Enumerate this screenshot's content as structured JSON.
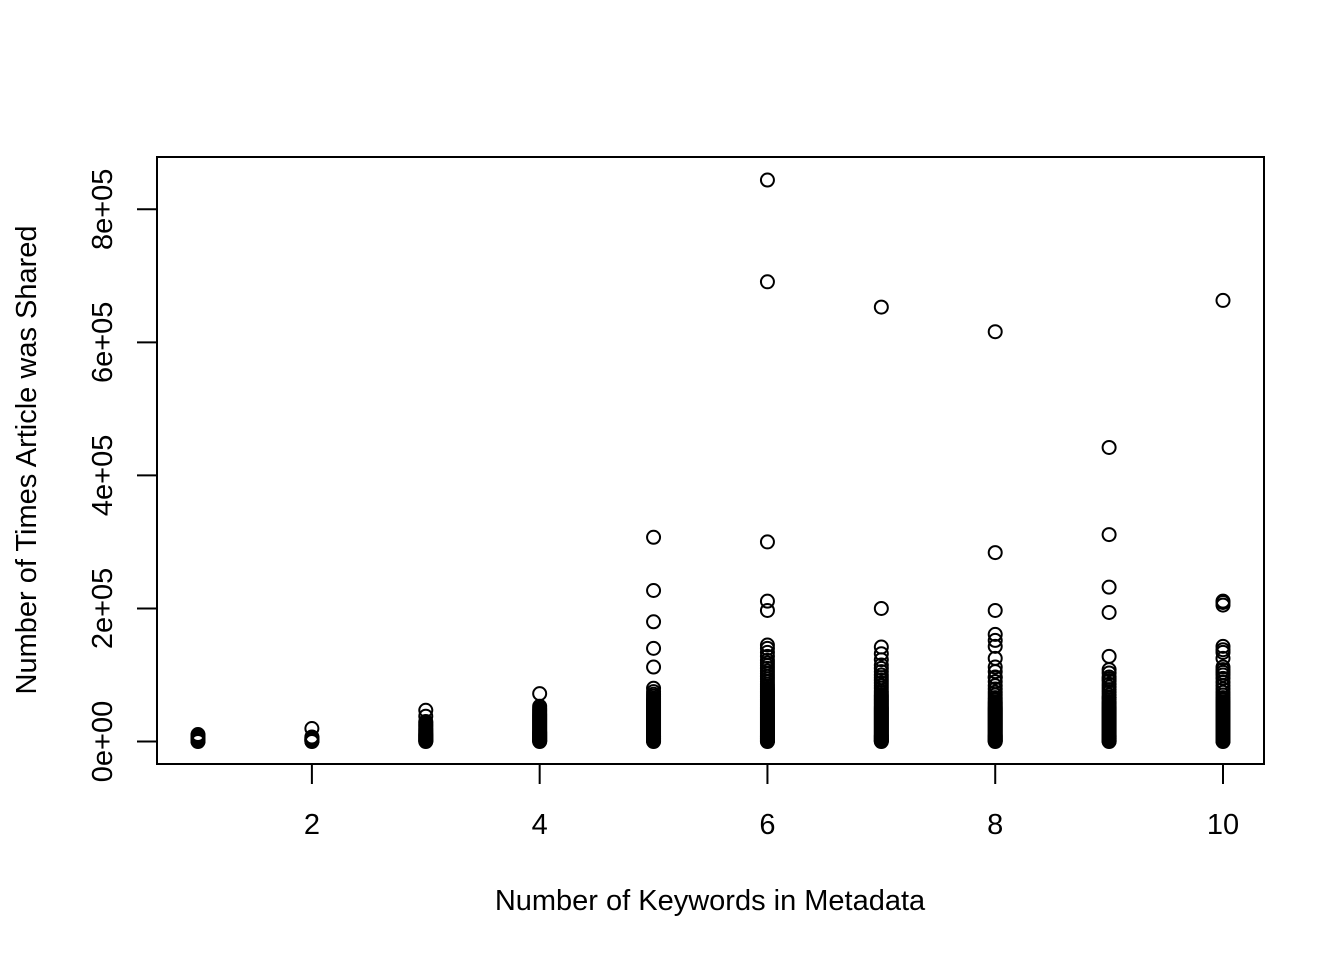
{
  "chart_data": {
    "type": "scatter",
    "title": "",
    "xlabel": "Number of Keywords in Metadata",
    "ylabel": "Number of Times Article was Shared",
    "xlim": [
      0.64,
      10.36
    ],
    "ylim": [
      -33792,
      878592
    ],
    "x_ticks": [
      {
        "value": 2,
        "label": "2"
      },
      {
        "value": 4,
        "label": "4"
      },
      {
        "value": 6,
        "label": "6"
      },
      {
        "value": 8,
        "label": "8"
      },
      {
        "value": 10,
        "label": "10"
      }
    ],
    "y_ticks": [
      {
        "value": 0,
        "label": "0e+00"
      },
      {
        "value": 200000,
        "label": "2e+05"
      },
      {
        "value": 400000,
        "label": "4e+05"
      },
      {
        "value": 600000,
        "label": "6e+05"
      },
      {
        "value": 800000,
        "label": "8e+05"
      }
    ],
    "grid": false,
    "legend": "none",
    "marker": "open-circle",
    "colors": {
      "points": "#000000",
      "axes": "#000000",
      "background": "#ffffff"
    },
    "series": [
      {
        "x": [
          1,
          1,
          1,
          1,
          1,
          1,
          1,
          1,
          1,
          1,
          1,
          1
        ],
        "y": [
          0,
          500,
          1000,
          1500,
          2000,
          3000,
          4000,
          5000,
          6000,
          7500,
          9000,
          10500
        ]
      },
      {
        "x": [
          2,
          2,
          2,
          2,
          2,
          2,
          2,
          2,
          2,
          2,
          2,
          2,
          2
        ],
        "y": [
          0,
          500,
          1000,
          1500,
          2000,
          2500,
          3000,
          3500,
          4000,
          5000,
          6000,
          6800,
          19500
        ]
      },
      {
        "x": [
          3,
          3,
          3,
          3,
          3,
          3,
          3,
          3,
          3,
          3,
          3,
          3,
          3,
          3,
          3,
          3,
          3,
          3,
          3,
          3,
          3,
          3,
          3,
          3,
          3,
          3
        ],
        "y": [
          0,
          600,
          1200,
          2000,
          3000,
          4000,
          5000,
          6000,
          7000,
          8000,
          9000,
          10000,
          11000,
          12000,
          13500,
          15000,
          16500,
          18000,
          20000,
          22000,
          24000,
          26000,
          28000,
          30000,
          38000,
          47000
        ]
      },
      {
        "x": [
          4,
          4,
          4,
          4,
          4,
          4,
          4,
          4,
          4,
          4,
          4,
          4,
          4,
          4,
          4,
          4,
          4,
          4,
          4,
          4,
          4,
          4,
          4,
          4,
          4,
          4,
          4,
          4,
          4,
          4,
          4,
          4,
          4,
          4,
          4,
          4,
          4,
          4,
          4,
          4,
          4
        ],
        "y": [
          0,
          600,
          1200,
          2000,
          3000,
          4000,
          5000,
          6000,
          7000,
          8000,
          9000,
          10000,
          11000,
          12000,
          13000,
          14000,
          15000,
          16500,
          18000,
          19500,
          21000,
          22500,
          24000,
          25500,
          27000,
          28500,
          30000,
          31500,
          33000,
          34500,
          36000,
          37500,
          39000,
          40500,
          42000,
          44000,
          46000,
          48000,
          50000,
          53000,
          72000
        ]
      },
      {
        "x": [
          5,
          5,
          5,
          5,
          5,
          5,
          5,
          5,
          5,
          5,
          5,
          5,
          5,
          5,
          5,
          5,
          5,
          5,
          5,
          5,
          5,
          5,
          5,
          5,
          5,
          5,
          5,
          5,
          5,
          5,
          5,
          5,
          5,
          5,
          5,
          5,
          5,
          5,
          5,
          5,
          5,
          5,
          5,
          5,
          5,
          5,
          5,
          5,
          5,
          5,
          5,
          5,
          5,
          5,
          5,
          5
        ],
        "y": [
          0,
          600,
          1200,
          2000,
          3000,
          4000,
          5000,
          6000,
          7000,
          8000,
          9000,
          10000,
          11500,
          13000,
          14500,
          16000,
          17500,
          19000,
          20500,
          22000,
          23500,
          25000,
          26500,
          28000,
          29500,
          31000,
          32500,
          34000,
          35500,
          37000,
          38500,
          40000,
          41500,
          43000,
          44500,
          46000,
          47500,
          49000,
          50500,
          52000,
          53500,
          55000,
          57000,
          59000,
          61000,
          63000,
          65000,
          68000,
          71000,
          75000,
          80000,
          112000,
          140000,
          180000,
          227000,
          307000
        ]
      },
      {
        "x": [
          6,
          6,
          6,
          6,
          6,
          6,
          6,
          6,
          6,
          6,
          6,
          6,
          6,
          6,
          6,
          6,
          6,
          6,
          6,
          6,
          6,
          6,
          6,
          6,
          6,
          6,
          6,
          6,
          6,
          6,
          6,
          6,
          6,
          6,
          6,
          6,
          6,
          6,
          6,
          6,
          6,
          6,
          6,
          6,
          6,
          6,
          6,
          6,
          6,
          6,
          6,
          6,
          6,
          6,
          6,
          6,
          6,
          6,
          6,
          6,
          6,
          6,
          6,
          6,
          6,
          6,
          6,
          6,
          6,
          6,
          6,
          6,
          6,
          6
        ],
        "y": [
          0,
          600,
          1200,
          2000,
          3000,
          4000,
          5000,
          6000,
          7000,
          8000,
          9000,
          10000,
          11500,
          13000,
          14500,
          16000,
          17500,
          19000,
          20500,
          22000,
          23500,
          25000,
          26500,
          28000,
          29500,
          31000,
          32500,
          34000,
          35500,
          37000,
          38500,
          40000,
          41500,
          43000,
          44500,
          46000,
          47500,
          49000,
          50500,
          52000,
          54000,
          56000,
          58000,
          60000,
          62000,
          64000,
          66000,
          68000,
          70000,
          72000,
          74000,
          76000,
          78000,
          80000,
          83000,
          86000,
          90000,
          94000,
          98000,
          102000,
          106000,
          110000,
          114000,
          118000,
          122000,
          128000,
          134000,
          140000,
          145000,
          197000,
          211000,
          300000,
          691000,
          844000
        ]
      },
      {
        "x": [
          7,
          7,
          7,
          7,
          7,
          7,
          7,
          7,
          7,
          7,
          7,
          7,
          7,
          7,
          7,
          7,
          7,
          7,
          7,
          7,
          7,
          7,
          7,
          7,
          7,
          7,
          7,
          7,
          7,
          7,
          7,
          7,
          7,
          7,
          7,
          7,
          7,
          7,
          7,
          7,
          7,
          7,
          7,
          7,
          7,
          7,
          7,
          7,
          7,
          7,
          7,
          7,
          7,
          7,
          7,
          7,
          7,
          7,
          7,
          7,
          7,
          7,
          7,
          7,
          7
        ],
        "y": [
          0,
          600,
          1200,
          2000,
          3000,
          4000,
          5000,
          6000,
          7000,
          8000,
          9000,
          10000,
          11500,
          13000,
          14500,
          16000,
          17500,
          19000,
          20500,
          22000,
          23500,
          25000,
          26500,
          28000,
          29500,
          31000,
          32500,
          34000,
          35500,
          37000,
          38500,
          40000,
          41500,
          43000,
          44500,
          46000,
          47500,
          49000,
          50500,
          52000,
          54000,
          56000,
          58000,
          60000,
          62000,
          64000,
          66000,
          68000,
          70000,
          73000,
          76000,
          80000,
          84000,
          88000,
          92000,
          96000,
          100000,
          105000,
          110000,
          115000,
          123000,
          132000,
          142000,
          200000,
          653000
        ]
      },
      {
        "x": [
          8,
          8,
          8,
          8,
          8,
          8,
          8,
          8,
          8,
          8,
          8,
          8,
          8,
          8,
          8,
          8,
          8,
          8,
          8,
          8,
          8,
          8,
          8,
          8,
          8,
          8,
          8,
          8,
          8,
          8,
          8,
          8,
          8,
          8,
          8,
          8,
          8,
          8,
          8,
          8,
          8,
          8,
          8,
          8,
          8,
          8,
          8,
          8,
          8,
          8,
          8,
          8,
          8,
          8,
          8,
          8,
          8,
          8,
          8,
          8,
          8,
          8
        ],
        "y": [
          0,
          600,
          1200,
          2000,
          3000,
          4000,
          5000,
          6000,
          7000,
          8000,
          9000,
          10000,
          11500,
          13000,
          14500,
          16000,
          17500,
          19000,
          20500,
          22000,
          23500,
          25000,
          26500,
          28000,
          29500,
          31000,
          32500,
          34000,
          35500,
          37000,
          38500,
          40000,
          41500,
          43000,
          44500,
          46000,
          47500,
          49000,
          50500,
          52000,
          54000,
          56000,
          58000,
          60000,
          63000,
          66000,
          70000,
          74000,
          79000,
          84000,
          90000,
          97000,
          105000,
          112000,
          125000,
          143000,
          152000,
          161000,
          197000,
          284000,
          616000,
          96000
        ]
      },
      {
        "x": [
          9,
          9,
          9,
          9,
          9,
          9,
          9,
          9,
          9,
          9,
          9,
          9,
          9,
          9,
          9,
          9,
          9,
          9,
          9,
          9,
          9,
          9,
          9,
          9,
          9,
          9,
          9,
          9,
          9,
          9,
          9,
          9,
          9,
          9,
          9,
          9,
          9,
          9,
          9,
          9,
          9,
          9,
          9,
          9,
          9,
          9,
          9,
          9,
          9,
          9,
          9,
          9,
          9,
          9,
          9,
          9,
          9,
          9,
          9,
          9,
          9,
          9
        ],
        "y": [
          0,
          600,
          1200,
          2000,
          3000,
          4000,
          5000,
          6000,
          7000,
          8000,
          9000,
          10000,
          11500,
          13000,
          14500,
          16000,
          17500,
          19000,
          20500,
          22000,
          23500,
          25000,
          26500,
          28000,
          29500,
          31000,
          32500,
          34000,
          35500,
          37000,
          38500,
          40000,
          41500,
          43000,
          44500,
          46000,
          47500,
          49000,
          50500,
          52000,
          54000,
          56000,
          58000,
          60000,
          63000,
          66000,
          70000,
          74000,
          78000,
          82000,
          86000,
          91000,
          97000,
          103000,
          108000,
          128000,
          194000,
          232000,
          311000,
          442000,
          66000,
          94000
        ]
      },
      {
        "x": [
          10,
          10,
          10,
          10,
          10,
          10,
          10,
          10,
          10,
          10,
          10,
          10,
          10,
          10,
          10,
          10,
          10,
          10,
          10,
          10,
          10,
          10,
          10,
          10,
          10,
          10,
          10,
          10,
          10,
          10,
          10,
          10,
          10,
          10,
          10,
          10,
          10,
          10,
          10,
          10,
          10,
          10,
          10,
          10,
          10,
          10,
          10,
          10,
          10,
          10,
          10,
          10,
          10,
          10,
          10,
          10,
          10,
          10,
          10,
          10,
          10,
          10,
          10,
          10
        ],
        "y": [
          0,
          600,
          1200,
          2000,
          3000,
          4000,
          5000,
          6000,
          7000,
          8000,
          9000,
          10000,
          11500,
          13000,
          14500,
          16000,
          17500,
          19000,
          20500,
          22000,
          23500,
          25000,
          26500,
          28000,
          29500,
          31000,
          32500,
          34000,
          35500,
          37000,
          38500,
          40000,
          41500,
          43000,
          44500,
          46000,
          47500,
          49000,
          50500,
          52000,
          54000,
          56000,
          58000,
          60000,
          63000,
          66000,
          70000,
          74000,
          79000,
          84000,
          89000,
          95000,
          100000,
          104000,
          108000,
          112000,
          125000,
          134000,
          138000,
          143000,
          205000,
          209000,
          211000,
          663000
        ]
      }
    ]
  }
}
